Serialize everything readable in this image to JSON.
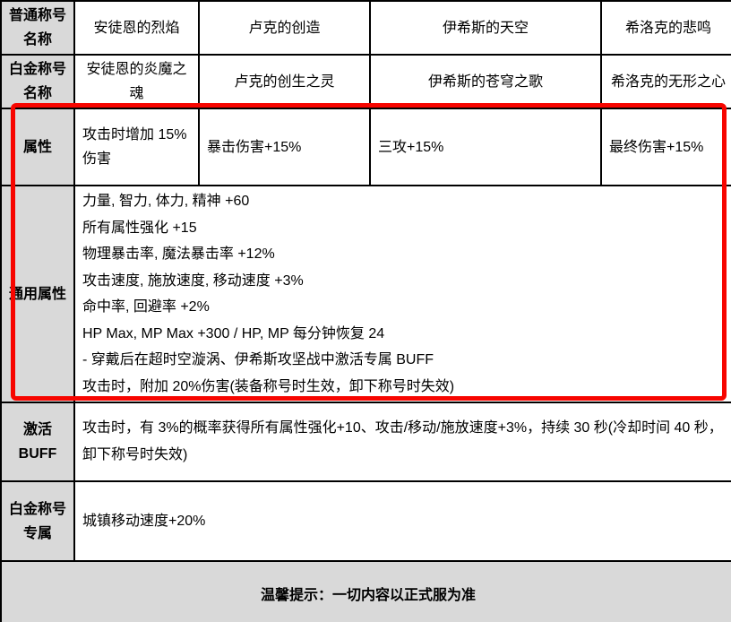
{
  "colors": {
    "header_gray": "#d9d9d9",
    "highlight_red": "#f70500",
    "border_black": "#000000",
    "text_black": "#000000"
  },
  "table": {
    "rows": {
      "normal": {
        "label": "普通称号名称",
        "cells": [
          "安徒恩的烈焰",
          "卢克的创造",
          "伊希斯的天空",
          "希洛克的悲鸣"
        ]
      },
      "platinum": {
        "label": "白金称号名称",
        "cells": [
          "安徒恩的炎魔之魂",
          "卢克的创生之灵",
          "伊希斯的苍穹之歌",
          "希洛克的无形之心"
        ]
      },
      "attribute": {
        "label": "属性",
        "cells": [
          "攻击时增加 15%伤害",
          "暴击伤害+15%",
          "三攻+15%",
          "最终伤害+15%"
        ]
      },
      "general": {
        "label": "通用属性",
        "lines": [
          "力量, 智力, 体力, 精神 +60",
          "所有属性强化 +15",
          "物理暴击率, 魔法暴击率 +12%",
          "攻击速度, 施放速度, 移动速度 +3%",
          "命中率, 回避率 +2%",
          "HP Max, MP Max +300 / HP, MP 每分钟恢复 24",
          "- 穿戴后在超时空漩涡、伊希斯攻坚战中激活专属 BUFF",
          "攻击时，附加 20%伤害(装备称号时生效，卸下称号时失效)"
        ]
      },
      "buff": {
        "label": "激活BUFF",
        "text": "攻击时，有 3%的概率获得所有属性强化+10、攻击/移动/施放速度+3%，持续 30 秒(冷却时间 40 秒，卸下称号时失效)"
      },
      "platinum_exclusive": {
        "label": "白金称号专属",
        "text": "城镇移动速度+20%"
      }
    },
    "footer": "温馨提示：一切内容以正式服为准"
  }
}
